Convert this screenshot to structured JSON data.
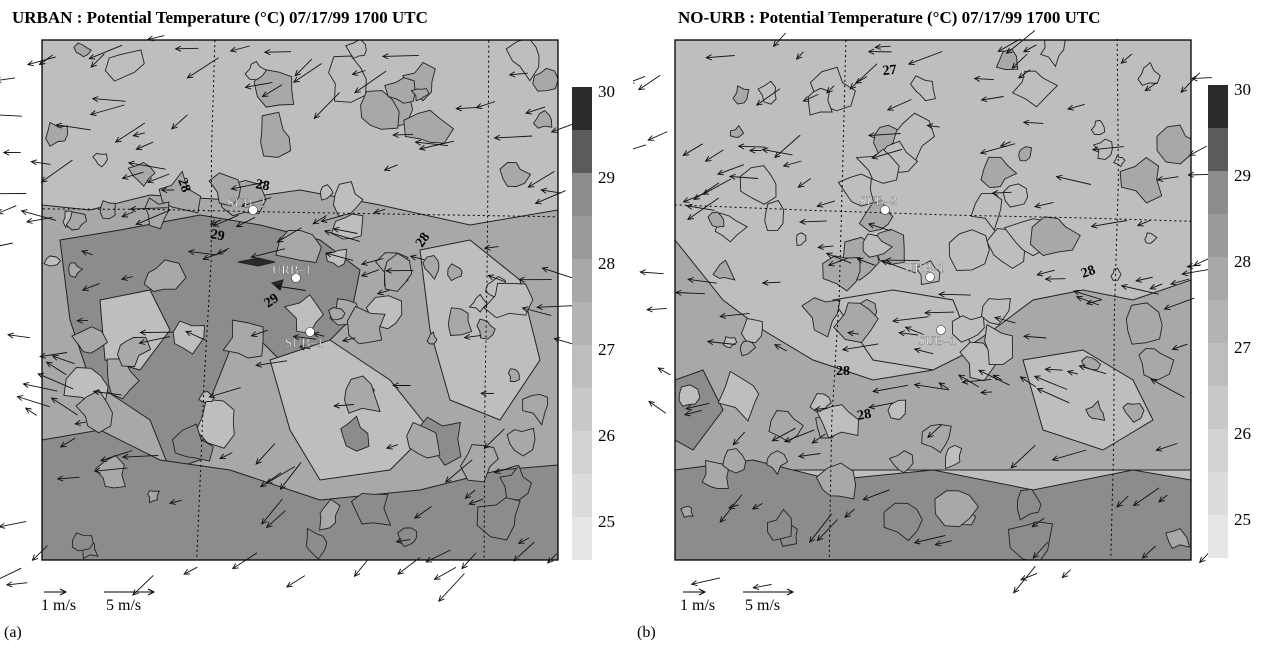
{
  "colors": {
    "c25": "#e6e6e6",
    "c26": "#d3d3d3",
    "c27": "#bebebe",
    "c28": "#a8a8a8",
    "c29": "#8c8c8c",
    "c30": "#2a2a2a",
    "contour": "#222222",
    "arrow": "#111111"
  },
  "panels": [
    {
      "id": "a",
      "panel_label": "(a)",
      "title": "URBAN : Potential Temperature (°C) 07/17/99 1700 UTC",
      "stations": [
        {
          "name": "SUB-2",
          "label": "SUB–2"
        },
        {
          "name": "URB-1",
          "label": "URB–1"
        },
        {
          "name": "SUB-1",
          "label": "SUB–1"
        }
      ],
      "contour_labels": [
        "28",
        "28",
        "28",
        "29",
        "29"
      ],
      "colorbar_ticks": [
        "30",
        "29",
        "28",
        "27",
        "26",
        "25"
      ],
      "scale_labels": [
        "1 m/s",
        "5 m/s"
      ]
    },
    {
      "id": "b",
      "panel_label": "(b)",
      "title": "NO-URB : Potential Temperature (°C) 07/17/99 1700 UTC",
      "stations": [
        {
          "name": "SUB-2",
          "label": "SUB–2"
        },
        {
          "name": "URB-1",
          "label": "URB–1"
        },
        {
          "name": "SUB-1",
          "label": "SUB–1"
        }
      ],
      "contour_labels": [
        "27",
        "28",
        "28",
        "28"
      ],
      "colorbar_ticks": [
        "30",
        "29",
        "28",
        "27",
        "26",
        "25"
      ],
      "scale_labels": [
        "1 m/s",
        "5 m/s"
      ]
    }
  ],
  "chart_data": [
    {
      "type": "heatmap",
      "title": "URBAN : Potential Temperature (°C) 07/17/99 1700 UTC",
      "colorbar": {
        "levels": [
          25,
          26,
          27,
          28,
          29,
          30
        ],
        "unit": "°C"
      },
      "field_description_levels": {
        "background": 28,
        "urban_core": 29,
        "local_max": 30,
        "cool_patches": 27
      },
      "stations": [
        "SUB-2",
        "URB-1",
        "SUB-1"
      ],
      "vector_scale_ms": [
        1,
        5
      ]
    },
    {
      "type": "heatmap",
      "title": "NO-URB : Potential Temperature (°C) 07/17/99 1700 UTC",
      "colorbar": {
        "levels": [
          25,
          26,
          27,
          28,
          29,
          30
        ],
        "unit": "°C"
      },
      "field_description_levels": {
        "background": 27,
        "south_band": 28
      },
      "stations": [
        "SUB-2",
        "URB-1",
        "SUB-1"
      ],
      "vector_scale_ms": [
        1,
        5
      ]
    }
  ]
}
